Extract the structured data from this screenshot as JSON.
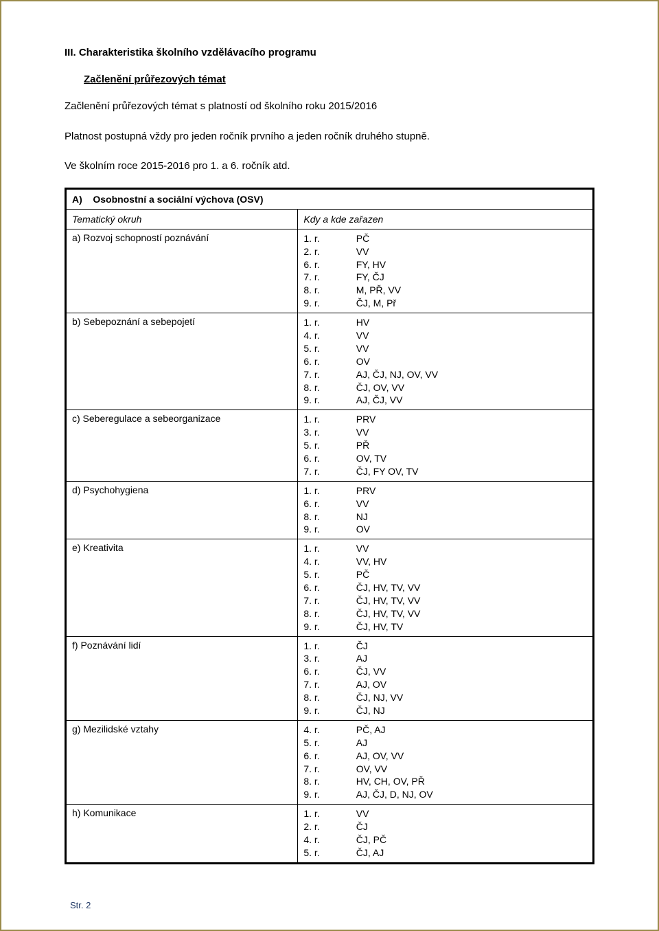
{
  "colors": {
    "page_border": "#9a8a4a",
    "text": "#000000",
    "table_border": "#000000",
    "footer": "#1f3864",
    "background": "#ffffff"
  },
  "fonts": {
    "body_pt": 11,
    "heading_pt": 11
  },
  "heading": "III. Charakteristika školního vzdělávacího programu",
  "subheading": "Začlenění průřezových témat",
  "intro_line1": "Začlenění průřezových témat s platností od školního roku 2015/2016",
  "intro_line2": "Platnost postupná vždy pro jeden ročník prvního a jeden ročník druhého stupně.",
  "intro_line3": "Ve školním roce 2015-2016 pro 1. a 6. ročník atd.",
  "section_letter": "A)",
  "section_title": "Osobnostní a sociální výchova (OSV)",
  "col_left_header": "Tematický okruh",
  "col_right_header": "Kdy a kde zařazen",
  "rows": [
    {
      "label": "a) Rozvoj schopností poznávání",
      "lines": [
        {
          "r": "1. r.",
          "v": "PČ"
        },
        {
          "r": "2. r.",
          "v": "VV"
        },
        {
          "r": "6. r.",
          "v": "FY, HV"
        },
        {
          "r": "7. r.",
          "v": "FY, ČJ"
        },
        {
          "r": "8. r.",
          "v": "M, PŘ, VV"
        },
        {
          "r": "9. r.",
          "v": "ČJ, M, Př"
        }
      ]
    },
    {
      "label": "b) Sebepoznání a sebepojetí",
      "lines": [
        {
          "r": "1. r.",
          "v": "HV"
        },
        {
          "r": "4. r.",
          "v": "VV"
        },
        {
          "r": "5. r.",
          "v": "VV"
        },
        {
          "r": "6. r.",
          "v": "OV"
        },
        {
          "r": "7. r.",
          "v": "AJ, ČJ, NJ, OV, VV"
        },
        {
          "r": "8. r.",
          "v": "ČJ, OV, VV"
        },
        {
          "r": "9. r.",
          "v": "AJ, ČJ, VV"
        }
      ]
    },
    {
      "label": "c) Seberegulace a sebeorganizace",
      "lines": [
        {
          "r": "1. r.",
          "v": "PRV"
        },
        {
          "r": "3. r.",
          "v": "VV"
        },
        {
          "r": "5. r.",
          "v": "PŘ"
        },
        {
          "r": "6. r.",
          "v": "OV, TV"
        },
        {
          "r": "7. r.",
          "v": "ČJ, FY OV, TV"
        }
      ]
    },
    {
      "label": "d) Psychohygiena",
      "lines": [
        {
          "r": "1. r.",
          "v": "PRV"
        },
        {
          "r": "6. r.",
          "v": "VV"
        },
        {
          "r": "8. r.",
          "v": "NJ"
        },
        {
          "r": "9. r.",
          "v": "OV"
        }
      ]
    },
    {
      "label": "e) Kreativita",
      "lines": [
        {
          "r": "1. r.",
          "v": "VV"
        },
        {
          "r": "4. r.",
          "v": "VV, HV"
        },
        {
          "r": "5. r.",
          "v": "PČ"
        },
        {
          "r": "6. r.",
          "v": "ČJ, HV, TV, VV"
        },
        {
          "r": "7. r.",
          "v": "ČJ, HV, TV, VV"
        },
        {
          "r": "8. r.",
          "v": "ČJ, HV, TV, VV"
        },
        {
          "r": "9. r.",
          "v": "ČJ, HV, TV"
        }
      ]
    },
    {
      "label": "f) Poznávání lidí",
      "lines": [
        {
          "r": "1. r.",
          "v": "ČJ"
        },
        {
          "r": "3. r.",
          "v": "AJ"
        },
        {
          "r": "6. r.",
          "v": "ČJ, VV"
        },
        {
          "r": "7. r.",
          "v": "AJ, OV"
        },
        {
          "r": "8. r.",
          "v": "ČJ, NJ, VV"
        },
        {
          "r": "9. r.",
          "v": "ČJ, NJ"
        }
      ]
    },
    {
      "label": "g) Mezilidské vztahy",
      "lines": [
        {
          "r": "4. r.",
          "v": "PČ, AJ"
        },
        {
          "r": "5. r.",
          "v": "AJ"
        },
        {
          "r": "6. r.",
          "v": "AJ, OV, VV"
        },
        {
          "r": "7. r.",
          "v": "OV, VV"
        },
        {
          "r": "8. r.",
          "v": "HV, CH, OV, PŘ"
        },
        {
          "r": "9. r.",
          "v": "AJ, ČJ, D, NJ, OV"
        }
      ]
    },
    {
      "label": "h) Komunikace",
      "lines": [
        {
          "r": "1. r.",
          "v": "VV"
        },
        {
          "r": "2. r.",
          "v": "ČJ"
        },
        {
          "r": "4. r.",
          "v": "ČJ, PČ"
        },
        {
          "r": "5. r.",
          "v": "ČJ, AJ"
        }
      ]
    }
  ],
  "footer": "Str. 2"
}
